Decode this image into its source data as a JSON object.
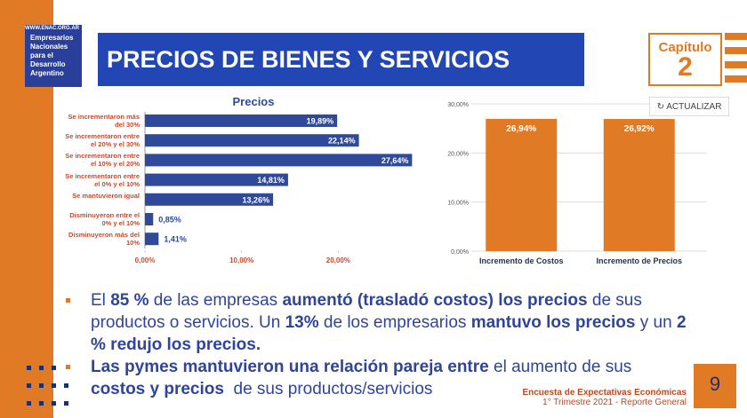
{
  "header": {
    "url": "WWW.ENAC.ORG.AR",
    "logo_lines": [
      "Empresarios",
      "Nacionales",
      "para el",
      "Desarrollo",
      "Argentino"
    ],
    "title": "PRECIOS DE BIENES Y SERVICIOS",
    "chapter_label": "Capítulo",
    "chapter_number": "2"
  },
  "button": "ACTUALIZAR",
  "chart_data": [
    {
      "type": "hbar",
      "title": "Precios",
      "color": "#2e4a99",
      "categories": [
        "Se incrementaron más del 30%",
        "Se incrementaron entre el 20% y el 30%",
        "Se incrementaron entre el 10% y el 20%",
        "Se incrementaron entre el 0% y el 10%",
        "Se mantuvieron igual",
        "Disminuyeron entre el 0% y el 10%",
        "Disminuyeron más del 10%"
      ],
      "values": [
        19.89,
        22.14,
        27.64,
        14.81,
        13.26,
        0.85,
        1.41
      ],
      "value_labels": [
        "19,89%",
        "22,14%",
        "27,64%",
        "14,81%",
        "13,26%",
        "0,85%",
        "1,41%"
      ],
      "xlim": [
        0,
        30
      ],
      "xticks": [
        {
          "value": 0,
          "label": "0,00%"
        },
        {
          "value": 10,
          "label": "10,00%"
        },
        {
          "value": 20,
          "label": "20,00%"
        }
      ]
    },
    {
      "type": "bar",
      "color": "#e07a24",
      "grid": true,
      "categories": [
        "Incremento de Costos",
        "Incremento de Precios"
      ],
      "values": [
        26.94,
        26.92
      ],
      "value_labels": [
        "26,94%",
        "26,92%"
      ],
      "ylim": [
        0,
        30
      ],
      "yticks": [
        {
          "value": 0,
          "label": "0,00%"
        },
        {
          "value": 10,
          "label": "10,00%"
        },
        {
          "value": 20,
          "label": "20,00%"
        },
        {
          "value": 30,
          "label": "30,00%"
        }
      ]
    }
  ],
  "bullets": [
    [
      {
        "text": "El ",
        "bold": false
      },
      {
        "text": "85 %",
        "bold": true
      },
      {
        "text": " de las empresas ",
        "bold": false
      },
      {
        "text": "aumentó (trasladó costos) los precios",
        "bold": true
      },
      {
        "text": " de sus productos o servicios. Un ",
        "bold": false
      },
      {
        "text": "13%",
        "bold": true
      },
      {
        "text": " de los empresarios ",
        "bold": false
      },
      {
        "text": "mantuvo los precios",
        "bold": true
      },
      {
        "text": " y un ",
        "bold": false
      },
      {
        "text": "2 % redujo los precios.",
        "bold": true
      }
    ],
    [
      {
        "text": "Las pymes mantuvieron una relación pareja entre",
        "bold": true
      },
      {
        "text": " el aumento de sus ",
        "bold": false
      },
      {
        "text": "costos y precios",
        "bold": true
      },
      {
        "text": "  de sus productos/servicios",
        "bold": false
      }
    ]
  ],
  "footer": {
    "line1": "Encuesta de Expectativas Económicas",
    "line2": "1° Trimestre 2021 - Reporte General",
    "page": "9"
  }
}
